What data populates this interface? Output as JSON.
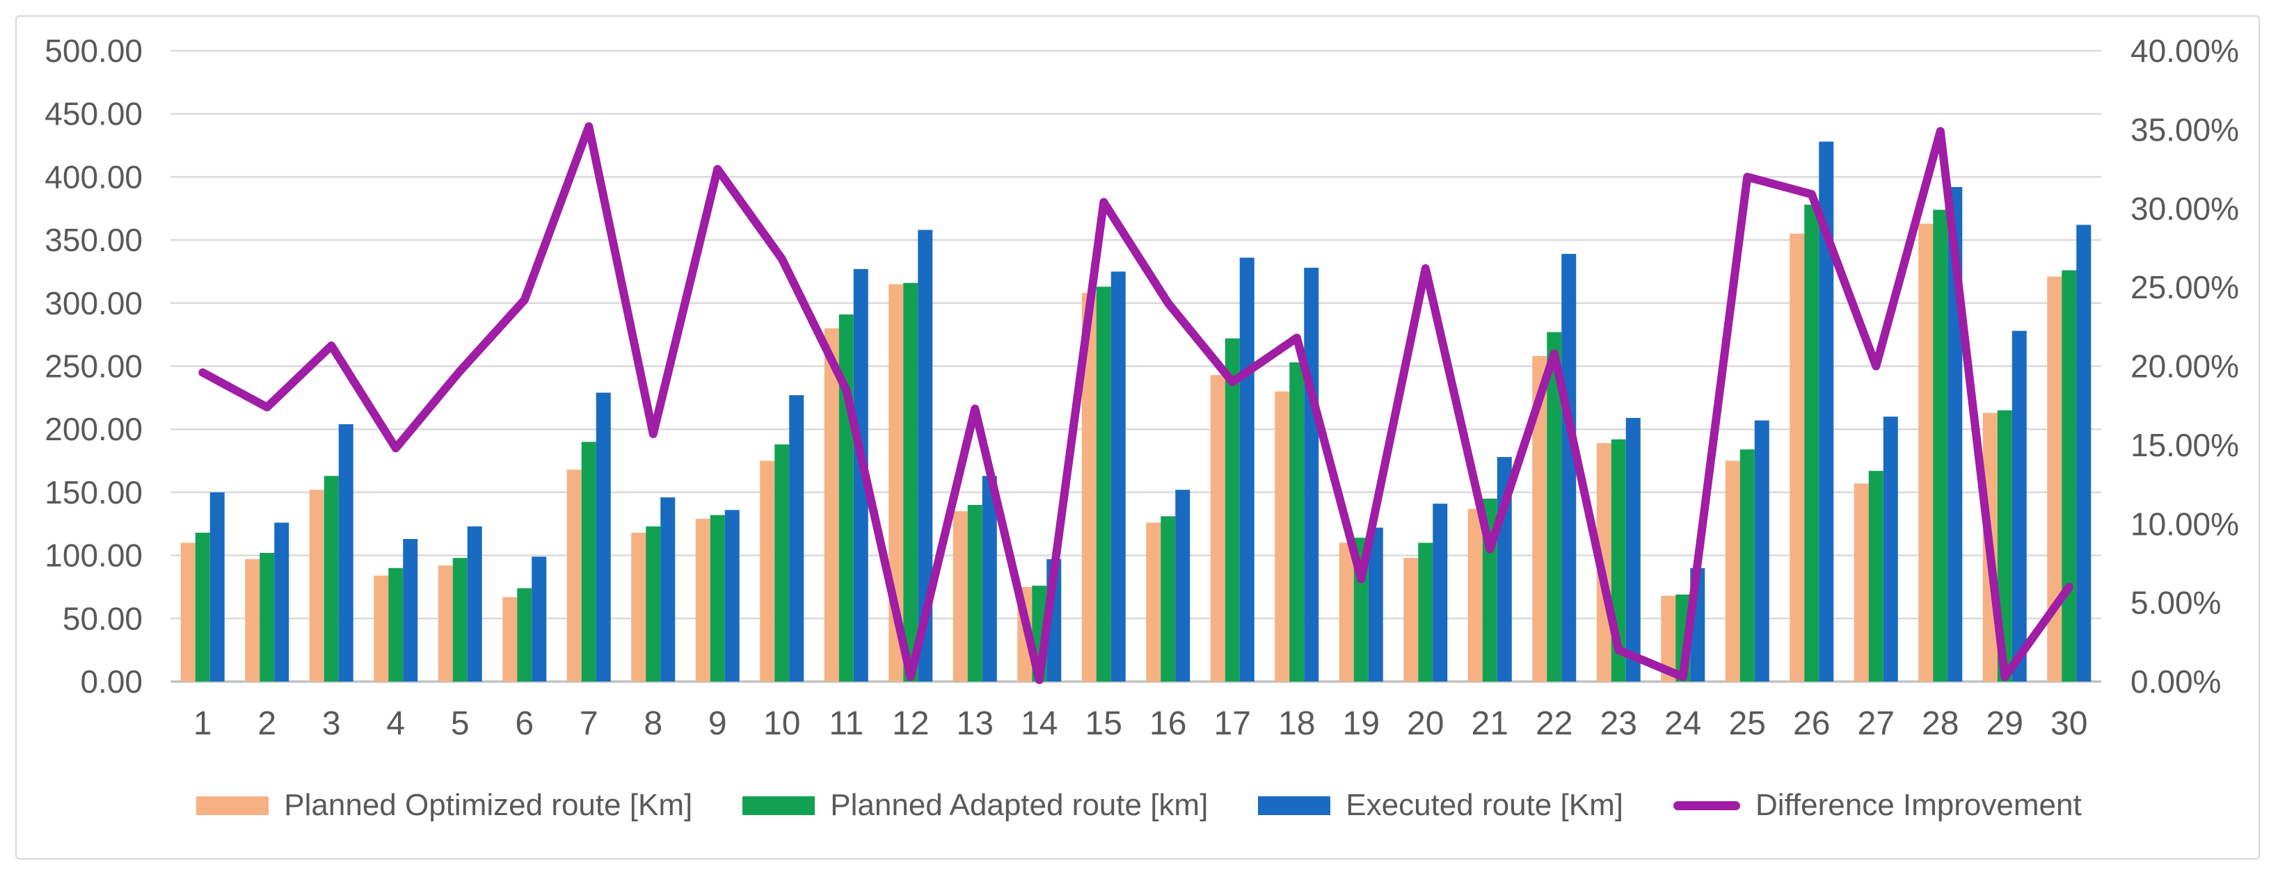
{
  "chart": {
    "background": "#FFFFFF",
    "frame_border_color": "#D6D6D6",
    "grid_color": "#D9D9D9",
    "axis_line_color": "#C2C2C2",
    "text_color": "#595959",
    "legend_position": "bottom"
  },
  "chart_data": {
    "type": "bar",
    "subtype": "grouped-bars-with-line-on-secondary-axis",
    "title": "",
    "xlabel": "",
    "ylabel": "",
    "grid": "horizontal",
    "categories": [
      "1",
      "2",
      "3",
      "4",
      "5",
      "6",
      "7",
      "8",
      "9",
      "10",
      "11",
      "12",
      "13",
      "14",
      "15",
      "16",
      "17",
      "18",
      "19",
      "20",
      "21",
      "22",
      "23",
      "24",
      "25",
      "26",
      "27",
      "28",
      "29",
      "30"
    ],
    "left_axis": {
      "min": 0,
      "max": 500,
      "step": 50,
      "tick_labels": [
        "0.00",
        "50.00",
        "100.00",
        "150.00",
        "200.00",
        "250.00",
        "300.00",
        "350.00",
        "400.00",
        "450.00",
        "500.00"
      ]
    },
    "right_axis": {
      "min": 0,
      "max": 40,
      "step": 5,
      "tick_labels": [
        "0.00%",
        "5.00%",
        "10.00%",
        "15.00%",
        "20.00%",
        "25.00%",
        "30.00%",
        "35.00%",
        "40.00%"
      ]
    },
    "series": [
      {
        "name": "Planned Optimized route [Km]",
        "type": "bar",
        "axis": "left",
        "color": "#F6B183",
        "values": [
          110,
          97,
          152,
          84,
          92,
          67,
          168,
          118,
          129,
          175,
          280,
          315,
          135,
          75,
          308,
          126,
          243,
          230,
          110,
          98,
          137,
          258,
          189,
          68,
          175,
          355,
          157,
          363,
          213,
          321
        ]
      },
      {
        "name": "Planned Adapted route [km]",
        "type": "bar",
        "axis": "left",
        "color": "#12A152",
        "values": [
          118,
          102,
          163,
          90,
          98,
          74,
          190,
          123,
          132,
          188,
          291,
          316,
          140,
          76,
          313,
          131,
          272,
          253,
          114,
          110,
          145,
          277,
          192,
          69,
          184,
          378,
          167,
          374,
          215,
          326
        ]
      },
      {
        "name": "Executed route [Km]",
        "type": "bar",
        "axis": "left",
        "color": "#186BC1",
        "values": [
          150,
          126,
          204,
          113,
          123,
          99,
          229,
          146,
          136,
          227,
          327,
          358,
          163,
          97,
          325,
          152,
          336,
          328,
          122,
          141,
          178,
          339,
          209,
          90,
          207,
          428,
          210,
          392,
          278,
          362
        ]
      },
      {
        "name": "Difference Improvement",
        "type": "line",
        "axis": "right",
        "color": "#A01DA5",
        "values": [
          19.6,
          17.4,
          21.3,
          14.8,
          19.7,
          24.2,
          35.2,
          15.7,
          32.5,
          26.8,
          18.5,
          0.3,
          17.3,
          0.1,
          30.4,
          24.0,
          19.0,
          21.8,
          6.5,
          26.2,
          8.4,
          20.8,
          2.0,
          0.3,
          32.0,
          30.9,
          20.0,
          34.9,
          0.3,
          6.0
        ]
      }
    ]
  }
}
